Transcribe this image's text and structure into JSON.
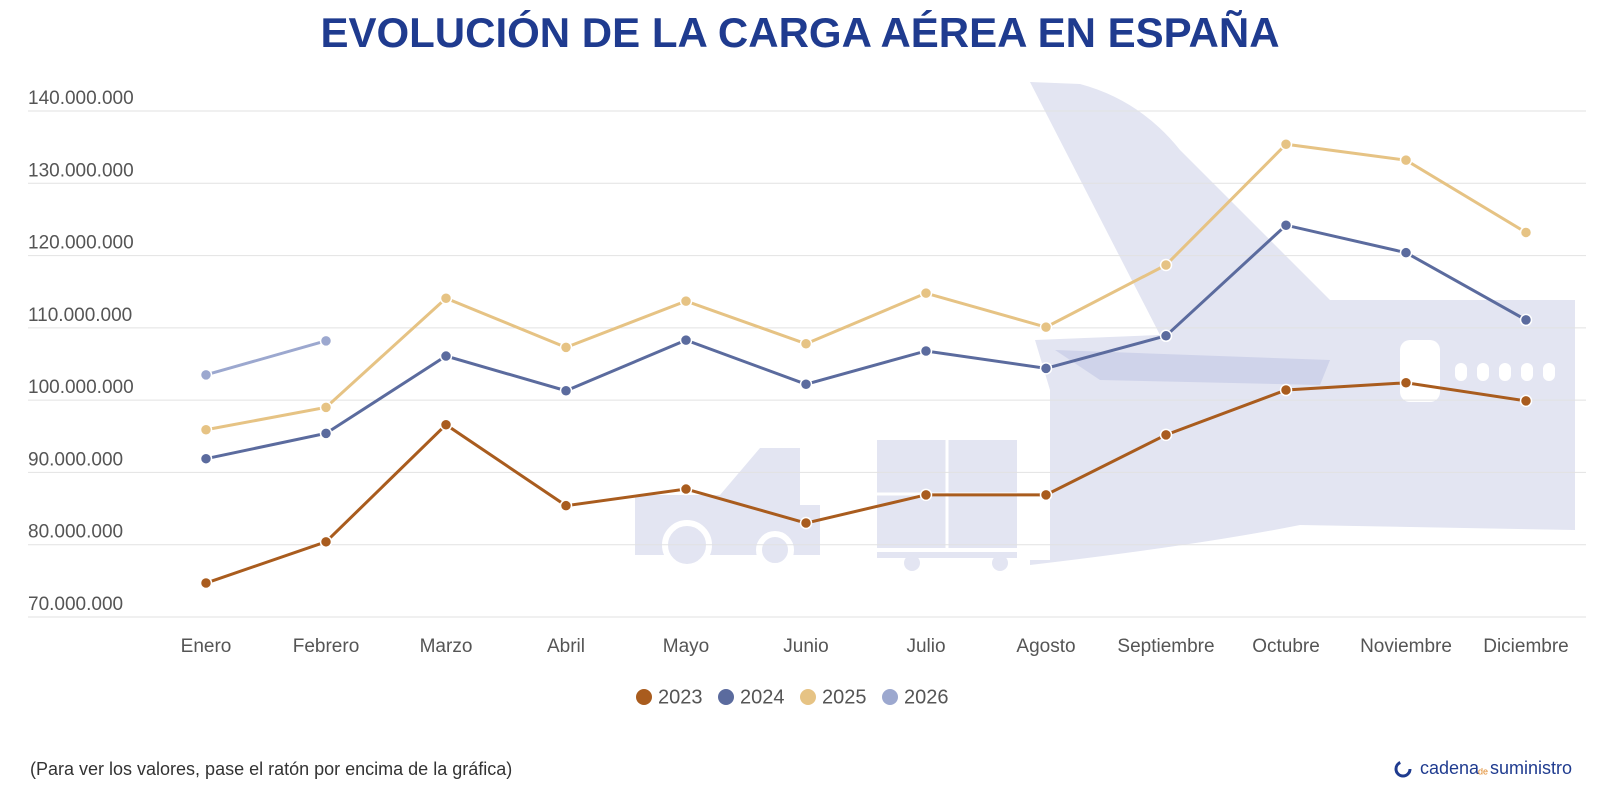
{
  "chart_data": {
    "type": "line",
    "title": "EVOLUCIÓN DE LA CARGA AÉREA EN ESPAÑA",
    "categories": [
      "Enero",
      "Febrero",
      "Marzo",
      "Abril",
      "Mayo",
      "Junio",
      "Julio",
      "Agosto",
      "Septiembre",
      "Octubre",
      "Noviembre",
      "Diciembre"
    ],
    "series": [
      {
        "name": "2023",
        "color": "#a95c1e",
        "values": [
          74700000,
          80400000,
          96600000,
          85400000,
          87700000,
          83000000,
          86900000,
          86900000,
          95200000,
          101400000,
          102400000,
          99900000
        ]
      },
      {
        "name": "2024",
        "color": "#5b6b9e",
        "values": [
          91900000,
          95400000,
          106100000,
          101300000,
          108300000,
          102200000,
          106800000,
          104400000,
          108900000,
          124200000,
          120400000,
          111100000
        ]
      },
      {
        "name": "2025",
        "color": "#e6c384",
        "values": [
          95900000,
          99000000,
          114100000,
          107300000,
          113700000,
          107800000,
          114800000,
          110100000,
          118700000,
          135400000,
          133200000,
          123200000
        ]
      },
      {
        "name": "2026",
        "color": "#9ca8cf",
        "values": [
          103500000,
          108200000,
          null,
          null,
          null,
          null,
          null,
          null,
          null,
          null,
          null,
          null
        ]
      }
    ],
    "ylim": [
      70000000,
      140000000
    ],
    "yticks": [
      {
        "value": 70000000,
        "label": "70.000.000"
      },
      {
        "value": 80000000,
        "label": "80.000.000"
      },
      {
        "value": 90000000,
        "label": "90.000.000"
      },
      {
        "value": 100000000,
        "label": "100.000.000"
      },
      {
        "value": 110000000,
        "label": "110.000.000"
      },
      {
        "value": 120000000,
        "label": "120.000.000"
      },
      {
        "value": 130000000,
        "label": "130.000.000"
      },
      {
        "value": 140000000,
        "label": "140.000.000"
      }
    ],
    "grid": true,
    "legend": "bottom",
    "note": "(Para ver los valores, pase el ratón por encima de la gráfica)",
    "brand": {
      "part1": "cadena",
      "part2": "de",
      "part3": "suministro"
    }
  }
}
